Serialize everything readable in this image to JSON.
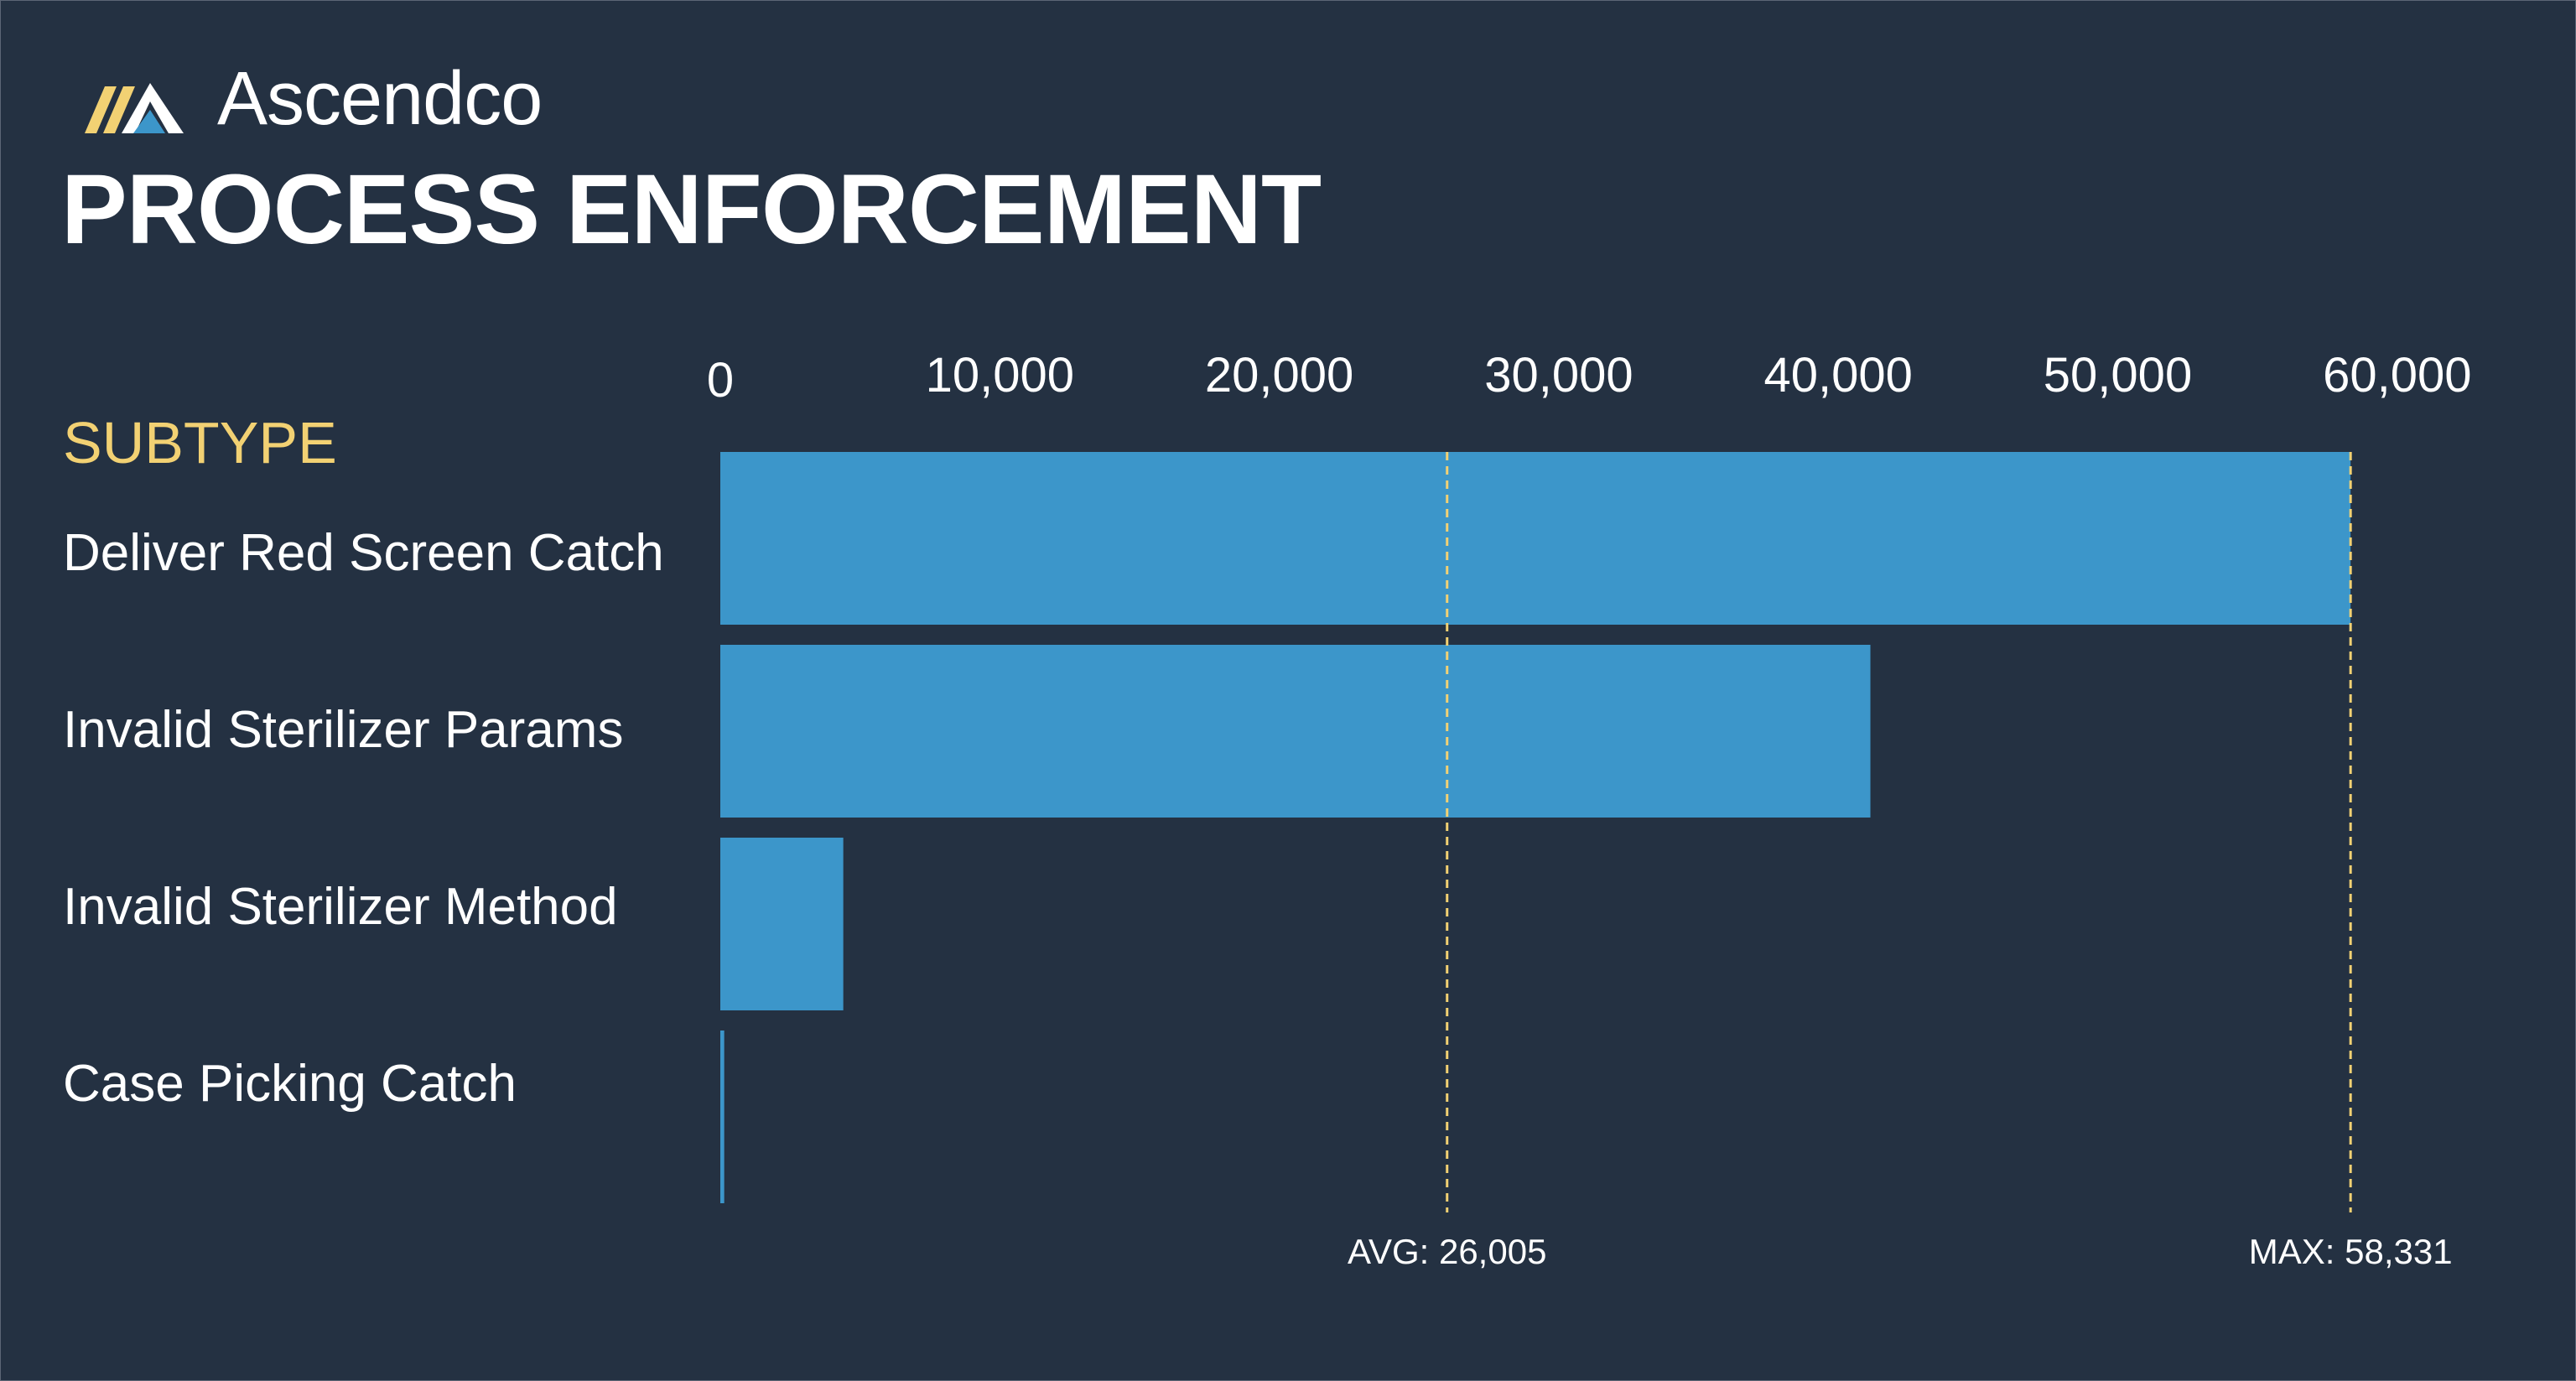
{
  "brand": {
    "name": "Ascendco",
    "logo_icon": "ascendco-mountain-logo-icon"
  },
  "title": "PROCESS ENFORCEMENT",
  "colors": {
    "background": "#243142",
    "bar": "#3c96ca",
    "reference_line": "#f2d173",
    "header_accent": "#f2d173",
    "text": "#ffffff"
  },
  "chart_data": {
    "type": "bar",
    "orientation": "horizontal",
    "category_header": "SUBTYPE",
    "categories": [
      "Deliver Red Screen Catch",
      "Invalid Sterilizer Params",
      "Invalid Sterilizer Method",
      "Case Picking Catch"
    ],
    "values": [
      58331,
      41150,
      4400,
      140
    ],
    "xlim": [
      0,
      63500
    ],
    "x_ticks": [
      0,
      10000,
      20000,
      30000,
      40000,
      50000,
      60000
    ],
    "x_tick_labels": [
      "0",
      "10,000",
      "20,000",
      "30,000",
      "40,000",
      "50,000",
      "60,000"
    ],
    "x_axis_position": "top",
    "grid": false,
    "reference_lines": [
      {
        "label": "AVG: 26,005",
        "value": 26005
      },
      {
        "label": "MAX: 58,331",
        "value": 58331
      }
    ]
  }
}
